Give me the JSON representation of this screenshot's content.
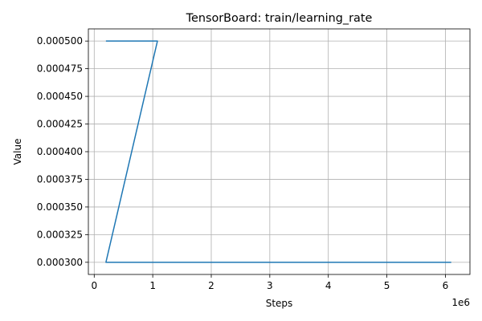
{
  "chart_data": {
    "type": "line",
    "title": "TensorBoard: train/learning_rate",
    "xlabel": "Steps",
    "ylabel": "Value",
    "x_offset_label": "1e6",
    "xlim": [
      -0.1,
      6.42
    ],
    "ylim": [
      0.000289,
      0.000511
    ],
    "grid": true,
    "x_ticks": [
      {
        "value": 0,
        "label": "0"
      },
      {
        "value": 1,
        "label": "1"
      },
      {
        "value": 2,
        "label": "2"
      },
      {
        "value": 3,
        "label": "3"
      },
      {
        "value": 4,
        "label": "4"
      },
      {
        "value": 5,
        "label": "5"
      },
      {
        "value": 6,
        "label": "6"
      }
    ],
    "y_ticks": [
      {
        "value": 0.0003,
        "label": "0.000300"
      },
      {
        "value": 0.000325,
        "label": "0.000325"
      },
      {
        "value": 0.00035,
        "label": "0.000350"
      },
      {
        "value": 0.000375,
        "label": "0.000375"
      },
      {
        "value": 0.0004,
        "label": "0.000400"
      },
      {
        "value": 0.000425,
        "label": "0.000425"
      },
      {
        "value": 0.00045,
        "label": "0.000450"
      },
      {
        "value": 0.000475,
        "label": "0.000475"
      },
      {
        "value": 0.0005,
        "label": "0.000500"
      }
    ],
    "series": [
      {
        "color": "#1f77b4",
        "x": [
          0.2,
          1.08,
          0.2,
          3.05,
          6.1
        ],
        "y": [
          0.0005,
          0.0005,
          0.0003,
          0.0003,
          0.0003
        ]
      }
    ]
  }
}
